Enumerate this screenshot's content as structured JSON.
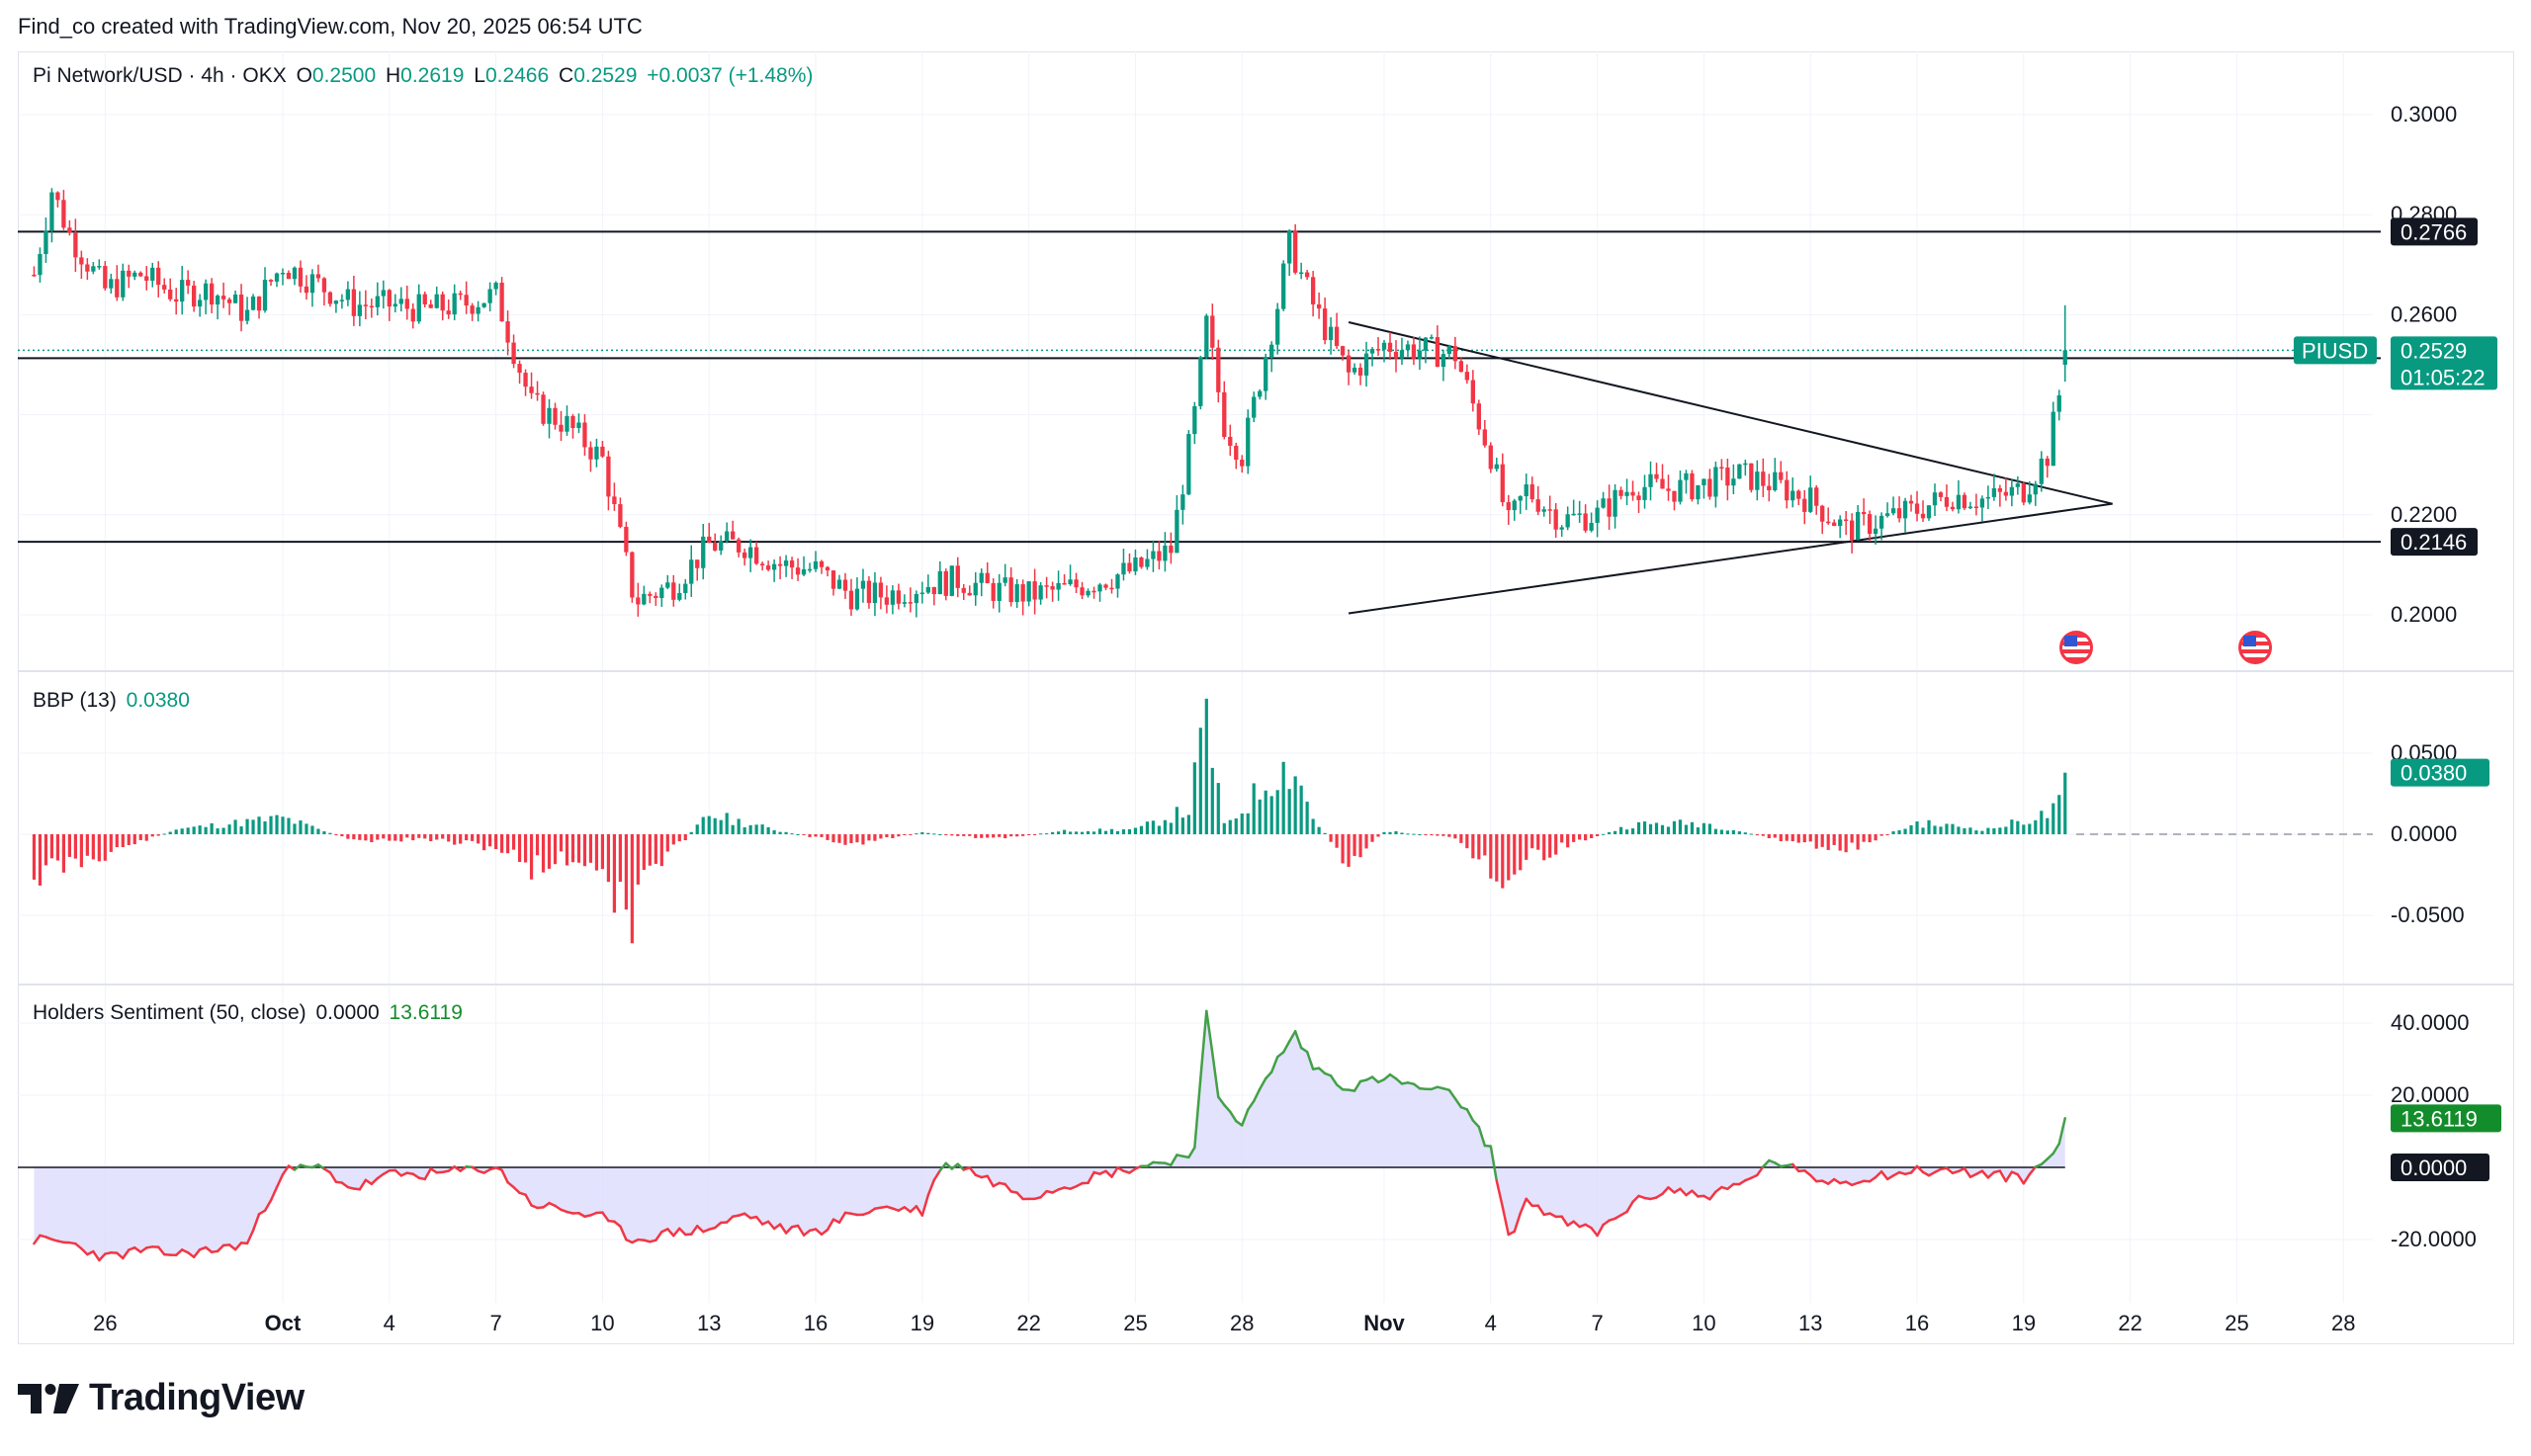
{
  "credit": "Find_co created with TradingView.com, Nov 20, 2025 06:54 UTC",
  "brand": "TradingView",
  "main_legend": {
    "symbol": "Pi Network/USD · 4h · OKX",
    "o_label": "O",
    "o": "0.2500",
    "h_label": "H",
    "h": "0.2619",
    "l_label": "L",
    "l": "0.2466",
    "c_label": "C",
    "c": "0.2529",
    "change": "+0.0037 (+1.48%)"
  },
  "bbp_legend": {
    "name": "BBP (13)",
    "value": "0.0380"
  },
  "hs_legend": {
    "name": "Holders Sentiment (50, close)",
    "v1": "0.0000",
    "v2": "13.6119"
  },
  "price_axis_ticks": [
    "0.3000",
    "0.2800",
    "0.2600",
    "0.2200",
    "0.2000"
  ],
  "price_labels": {
    "resistance_high": "0.2766",
    "symbol_tag": "PIUSD",
    "last_price": "0.2529",
    "countdown": "01:05:22",
    "level_mid": "0.2513",
    "support": "0.2146"
  },
  "bbp_axis_ticks": [
    "0.0500",
    "0.0000",
    "-0.0500"
  ],
  "bbp_last": "0.0380",
  "hs_axis_ticks": [
    "40.0000",
    "20.0000",
    "-20.0000"
  ],
  "hs_last": "13.6119",
  "hs_zero": "0.0000",
  "x_ticks": [
    "26",
    "Oct",
    "4",
    "7",
    "10",
    "13",
    "16",
    "19",
    "22",
    "25",
    "28",
    "Nov",
    "4",
    "7",
    "10",
    "13",
    "16",
    "19",
    "22",
    "25",
    "28"
  ],
  "colors": {
    "up": "#089981",
    "down": "#f23645",
    "hs_up": "#43a047",
    "hs_fill": "#dcdcfc"
  },
  "chart_data": [
    {
      "type": "candlestick",
      "title": "Pi Network/USD · 4h · OKX",
      "ylim": [
        0.19,
        0.307
      ],
      "x_range": [
        "2025-09-24",
        "2025-11-29"
      ],
      "horizontal_levels": [
        0.2766,
        0.2513,
        0.2146
      ],
      "triangle": {
        "upper": [
          [
            "2025-10-31",
            0.2585
          ],
          [
            "2025-11-21T12:00",
            0.2222
          ]
        ],
        "lower": [
          [
            "2025-10-31",
            0.2003
          ],
          [
            "2025-11-21T12:00",
            0.2222
          ]
        ]
      },
      "close_path": [
        [
          "2025-09-24",
          0.268
        ],
        [
          "2025-09-24T12:00",
          0.285
        ],
        [
          "2025-09-25",
          0.276
        ],
        [
          "2025-09-26",
          0.265
        ],
        [
          "2025-09-27",
          0.268
        ],
        [
          "2025-09-28",
          0.264
        ],
        [
          "2025-09-29",
          0.265
        ],
        [
          "2025-09-30",
          0.26
        ],
        [
          "2025-10-01",
          0.27
        ],
        [
          "2025-10-02",
          0.266
        ],
        [
          "2025-10-03",
          0.262
        ],
        [
          "2025-10-04",
          0.262
        ],
        [
          "2025-10-05",
          0.261
        ],
        [
          "2025-10-06",
          0.262
        ],
        [
          "2025-10-07",
          0.264
        ],
        [
          "2025-10-08",
          0.242
        ],
        [
          "2025-10-09",
          0.238
        ],
        [
          "2025-10-10",
          0.231
        ],
        [
          "2025-10-10T20:00",
          0.205
        ],
        [
          "2025-10-11",
          0.203
        ],
        [
          "2025-10-12",
          0.206
        ],
        [
          "2025-10-13",
          0.214
        ],
        [
          "2025-10-14",
          0.214
        ],
        [
          "2025-10-15",
          0.21
        ],
        [
          "2025-10-16",
          0.209
        ],
        [
          "2025-10-17",
          0.204
        ],
        [
          "2025-10-18",
          0.204
        ],
        [
          "2025-10-19",
          0.206
        ],
        [
          "2025-10-20",
          0.207
        ],
        [
          "2025-10-21",
          0.205
        ],
        [
          "2025-10-22",
          0.204
        ],
        [
          "2025-10-23",
          0.205
        ],
        [
          "2025-10-24",
          0.207
        ],
        [
          "2025-10-25",
          0.209
        ],
        [
          "2025-10-26",
          0.213
        ],
        [
          "2025-10-26T16:00",
          0.24
        ],
        [
          "2025-10-27",
          0.258
        ],
        [
          "2025-10-27T12:00",
          0.238
        ],
        [
          "2025-10-28",
          0.232
        ],
        [
          "2025-10-29",
          0.262
        ],
        [
          "2025-10-29T08:00",
          0.274
        ],
        [
          "2025-10-30",
          0.262
        ],
        [
          "2025-10-31",
          0.248
        ],
        [
          "2025-11-01",
          0.254
        ],
        [
          "2025-11-02",
          0.253
        ],
        [
          "2025-11-03",
          0.252
        ],
        [
          "2025-11-04",
          0.232
        ],
        [
          "2025-11-04T12:00",
          0.218
        ],
        [
          "2025-11-05",
          0.225
        ],
        [
          "2025-11-06",
          0.219
        ],
        [
          "2025-11-07",
          0.22
        ],
        [
          "2025-11-08",
          0.226
        ],
        [
          "2025-11-09",
          0.225
        ],
        [
          "2025-11-10",
          0.226
        ],
        [
          "2025-11-11",
          0.228
        ],
        [
          "2025-11-12",
          0.226
        ],
        [
          "2025-11-13",
          0.223
        ],
        [
          "2025-11-14",
          0.217
        ],
        [
          "2025-11-15",
          0.219
        ],
        [
          "2025-11-16",
          0.221
        ],
        [
          "2025-11-17",
          0.224
        ],
        [
          "2025-11-18",
          0.223
        ],
        [
          "2025-11-19",
          0.225
        ],
        [
          "2025-11-19T16:00",
          0.232
        ],
        [
          "2025-11-20",
          0.244
        ],
        [
          "2025-11-20T04:00",
          0.2529
        ]
      ],
      "last": {
        "o": 0.25,
        "h": 0.2619,
        "l": 0.2466,
        "c": 0.2529
      }
    },
    {
      "type": "bar",
      "title": "BBP (13)",
      "ylim": [
        -0.075,
        0.08
      ],
      "last": 0.038,
      "values_by_date": [
        [
          "2025-09-24",
          -0.025
        ],
        [
          "2025-09-26",
          -0.012
        ],
        [
          "2025-09-28",
          0.003
        ],
        [
          "2025-10-01",
          0.01
        ],
        [
          "2025-10-03",
          -0.004
        ],
        [
          "2025-10-05",
          -0.003
        ],
        [
          "2025-10-07",
          -0.008
        ],
        [
          "2025-10-08",
          -0.02
        ],
        [
          "2025-10-09",
          -0.015
        ],
        [
          "2025-10-10",
          -0.02
        ],
        [
          "2025-10-10T20:00",
          -0.06
        ],
        [
          "2025-10-11",
          -0.03
        ],
        [
          "2025-10-12",
          -0.01
        ],
        [
          "2025-10-13",
          0.012
        ],
        [
          "2025-10-15",
          0.002
        ],
        [
          "2025-10-17",
          -0.006
        ],
        [
          "2025-10-19",
          0.001
        ],
        [
          "2025-10-21",
          -0.003
        ],
        [
          "2025-10-23",
          0.002
        ],
        [
          "2025-10-25",
          0.003
        ],
        [
          "2025-10-26T12:00",
          0.015
        ],
        [
          "2025-10-27",
          0.07
        ],
        [
          "2025-10-27T12:00",
          0.005
        ],
        [
          "2025-10-28",
          0.015
        ],
        [
          "2025-10-29",
          0.04
        ],
        [
          "2025-10-29T12:00",
          0.04
        ],
        [
          "2025-10-30",
          0.01
        ],
        [
          "2025-10-31",
          -0.018
        ],
        [
          "2025-11-01",
          0.002
        ],
        [
          "2025-11-03",
          -0.002
        ],
        [
          "2025-11-04",
          -0.02
        ],
        [
          "2025-11-04T12:00",
          -0.032
        ],
        [
          "2025-11-05",
          -0.015
        ],
        [
          "2025-11-06",
          -0.008
        ],
        [
          "2025-11-08",
          0.006
        ],
        [
          "2025-11-10",
          0.007
        ],
        [
          "2025-11-12",
          -0.003
        ],
        [
          "2025-11-14",
          -0.01
        ],
        [
          "2025-11-16",
          0.007
        ],
        [
          "2025-11-18",
          0.003
        ],
        [
          "2025-11-19T16:00",
          0.012
        ],
        [
          "2025-11-20",
          0.018
        ],
        [
          "2025-11-20T04:00",
          0.038
        ]
      ]
    },
    {
      "type": "area",
      "title": "Holders Sentiment (50, close)",
      "ylim": [
        -30,
        47
      ],
      "last": 13.6119,
      "values_by_date": [
        [
          "2025-09-24",
          -20
        ],
        [
          "2025-09-25",
          -21
        ],
        [
          "2025-09-26",
          -25
        ],
        [
          "2025-09-27",
          -23
        ],
        [
          "2025-09-28",
          -24
        ],
        [
          "2025-09-29",
          -23
        ],
        [
          "2025-09-30",
          -21
        ],
        [
          "2025-10-01",
          -1
        ],
        [
          "2025-10-02",
          0
        ],
        [
          "2025-10-03",
          -6
        ],
        [
          "2025-10-04",
          -2
        ],
        [
          "2025-10-05",
          -2
        ],
        [
          "2025-10-06",
          -1
        ],
        [
          "2025-10-07",
          0
        ],
        [
          "2025-10-08",
          -10
        ],
        [
          "2025-10-09",
          -12
        ],
        [
          "2025-10-10",
          -14
        ],
        [
          "2025-10-10T20:00",
          -20
        ],
        [
          "2025-10-11",
          -20
        ],
        [
          "2025-10-12",
          -18
        ],
        [
          "2025-10-13",
          -17
        ],
        [
          "2025-10-14",
          -13
        ],
        [
          "2025-10-15",
          -17
        ],
        [
          "2025-10-16",
          -18
        ],
        [
          "2025-10-17",
          -13
        ],
        [
          "2025-10-18",
          -11
        ],
        [
          "2025-10-19",
          -12
        ],
        [
          "2025-10-19T12:00",
          0
        ],
        [
          "2025-10-20",
          1
        ],
        [
          "2025-10-21",
          -4
        ],
        [
          "2025-10-22",
          -8
        ],
        [
          "2025-10-23",
          -5
        ],
        [
          "2025-10-24",
          -2
        ],
        [
          "2025-10-25",
          0
        ],
        [
          "2025-10-26",
          2
        ],
        [
          "2025-10-26T16:00",
          5
        ],
        [
          "2025-10-27",
          42
        ],
        [
          "2025-10-27T08:00",
          20
        ],
        [
          "2025-10-28",
          12
        ],
        [
          "2025-10-29",
          30
        ],
        [
          "2025-10-29T12:00",
          37
        ],
        [
          "2025-10-30",
          28
        ],
        [
          "2025-10-31",
          22
        ],
        [
          "2025-11-01",
          25
        ],
        [
          "2025-11-02",
          22
        ],
        [
          "2025-11-03",
          20
        ],
        [
          "2025-11-04",
          5
        ],
        [
          "2025-11-04T12:00",
          -20
        ],
        [
          "2025-11-05",
          -9
        ],
        [
          "2025-11-06",
          -15
        ],
        [
          "2025-11-07",
          -18
        ],
        [
          "2025-11-08",
          -10
        ],
        [
          "2025-11-09",
          -6
        ],
        [
          "2025-11-10",
          -8
        ],
        [
          "2025-11-11",
          -5
        ],
        [
          "2025-11-12",
          2
        ],
        [
          "2025-11-13",
          -3
        ],
        [
          "2025-11-14",
          -4
        ],
        [
          "2025-11-15",
          -2
        ],
        [
          "2025-11-16",
          -1
        ],
        [
          "2025-11-17",
          -1
        ],
        [
          "2025-11-18",
          -2
        ],
        [
          "2025-11-19",
          -3
        ],
        [
          "2025-11-19T16:00",
          2
        ],
        [
          "2025-11-20",
          8
        ],
        [
          "2025-11-20T04:00",
          13.6119
        ]
      ]
    }
  ]
}
